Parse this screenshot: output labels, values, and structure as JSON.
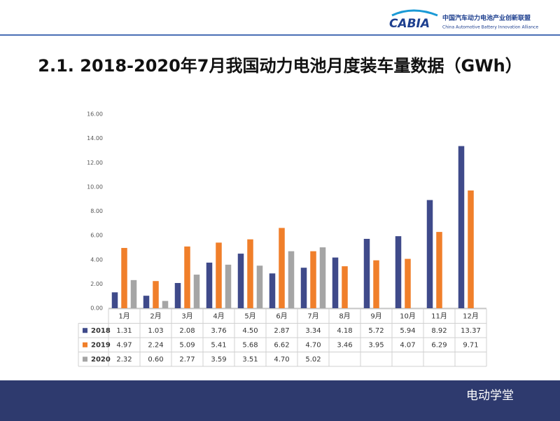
{
  "header": {
    "logo": "CABIA",
    "org_cn": "中国汽车动力电池产业创新联盟",
    "org_en": "China Automotive Battery Innovation Alliance"
  },
  "footer": {
    "watermark": "电动学堂"
  },
  "chart_data": {
    "type": "bar",
    "title": "2.1. 2018-2020年7月我国动力电池月度装车量数据（GWh）",
    "categories": [
      "1月",
      "2月",
      "3月",
      "4月",
      "5月",
      "6月",
      "7月",
      "8月",
      "9月",
      "10月",
      "11月",
      "12月"
    ],
    "series": [
      {
        "name": "2018",
        "color": "#3f4a8a",
        "values": [
          1.31,
          1.03,
          2.08,
          3.76,
          4.5,
          2.87,
          3.34,
          4.18,
          5.72,
          5.94,
          8.92,
          13.37
        ],
        "value_labels": [
          "1.31",
          "1.03",
          "2.08",
          "3.76",
          "4.50",
          "2.87",
          "3.34",
          "4.18",
          "5.72",
          "5.94",
          "8.92",
          "13.37"
        ]
      },
      {
        "name": "2019",
        "color": "#f07f2a",
        "values": [
          4.97,
          2.24,
          5.09,
          5.41,
          5.68,
          6.62,
          4.7,
          3.46,
          3.95,
          4.07,
          6.29,
          9.71
        ],
        "value_labels": [
          "4.97",
          "2.24",
          "5.09",
          "5.41",
          "5.68",
          "6.62",
          "4.70",
          "3.46",
          "3.95",
          "4.07",
          "6.29",
          "9.71"
        ]
      },
      {
        "name": "2020",
        "color": "#a5a5a5",
        "values": [
          2.32,
          0.6,
          2.77,
          3.59,
          3.51,
          4.7,
          5.02,
          null,
          null,
          null,
          null,
          null
        ],
        "value_labels": [
          "2.32",
          "0.60",
          "2.77",
          "3.59",
          "3.51",
          "4.70",
          "5.02",
          null,
          null,
          null,
          null,
          null
        ]
      }
    ],
    "ylim": [
      0,
      16
    ],
    "yticks": [
      {
        "value": 0,
        "label": "0.00"
      },
      {
        "value": 2,
        "label": "2.00"
      },
      {
        "value": 4,
        "label": "4.00"
      },
      {
        "value": 6,
        "label": "6.00"
      },
      {
        "value": 8,
        "label": "8.00"
      },
      {
        "value": 10,
        "label": "10.00"
      },
      {
        "value": 12,
        "label": "12.00"
      },
      {
        "value": 14,
        "label": "14.00"
      },
      {
        "value": 16,
        "label": "16.00"
      }
    ],
    "grid": false
  }
}
